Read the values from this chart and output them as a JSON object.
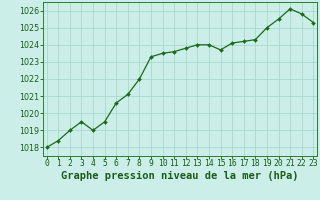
{
  "x": [
    0,
    1,
    2,
    3,
    4,
    5,
    6,
    7,
    8,
    9,
    10,
    11,
    12,
    13,
    14,
    15,
    16,
    17,
    18,
    19,
    20,
    21,
    22,
    23
  ],
  "y": [
    1018.0,
    1018.4,
    1019.0,
    1019.5,
    1019.0,
    1019.5,
    1020.6,
    1021.1,
    1022.0,
    1023.3,
    1023.5,
    1023.6,
    1023.8,
    1024.0,
    1024.0,
    1023.7,
    1024.1,
    1024.2,
    1024.3,
    1025.0,
    1025.5,
    1026.1,
    1025.8,
    1025.3
  ],
  "line_color": "#1a6b1a",
  "marker": "D",
  "marker_size": 2.0,
  "bg_color": "#cceee8",
  "grid_color": "#aad8d0",
  "xlabel": "Graphe pression niveau de la mer (hPa)",
  "xlabel_color": "#1a5c1a",
  "tick_color": "#1a5c1a",
  "ylim": [
    1017.5,
    1026.5
  ],
  "xlim": [
    -0.3,
    23.3
  ],
  "yticks": [
    1018,
    1019,
    1020,
    1021,
    1022,
    1023,
    1024,
    1025,
    1026
  ],
  "xtick_labels": [
    "0",
    "1",
    "2",
    "3",
    "4",
    "5",
    "6",
    "7",
    "8",
    "9",
    "10",
    "11",
    "12",
    "13",
    "14",
    "15",
    "16",
    "17",
    "18",
    "19",
    "20",
    "21",
    "22",
    "23"
  ],
  "spine_color": "#2d7a2d",
  "xlabel_fontsize": 7.5,
  "tick_fontsize": 5.8
}
